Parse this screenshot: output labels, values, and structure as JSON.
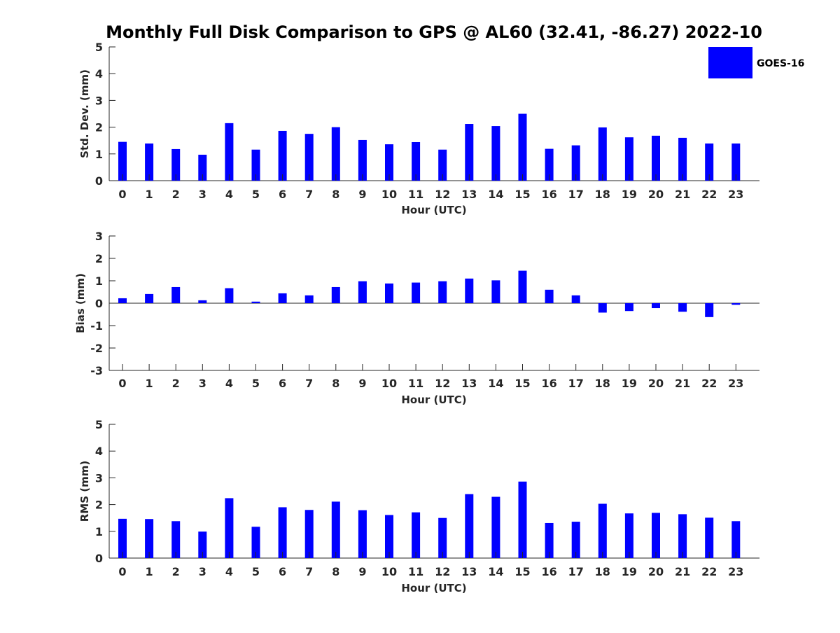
{
  "title": "Monthly Full Disk Comparison to GPS @ AL60 (32.41, -86.27) 2022-10",
  "legend": {
    "label": "GOES-16",
    "color": "#0000ff",
    "placement": "top-right"
  },
  "chart_data": [
    {
      "type": "bar",
      "xlabel": "Hour (UTC)",
      "ylabel": "Std. Dev. (mm)",
      "ylim": [
        0,
        5
      ],
      "yticks": [
        "0",
        "1",
        "2",
        "3",
        "4",
        "5"
      ],
      "categories": [
        "0",
        "1",
        "2",
        "3",
        "4",
        "5",
        "6",
        "7",
        "8",
        "9",
        "10",
        "11",
        "12",
        "13",
        "14",
        "15",
        "16",
        "17",
        "18",
        "19",
        "20",
        "21",
        "22",
        "23"
      ],
      "series": [
        {
          "name": "GOES-16",
          "color": "#0000ff",
          "values": [
            1.45,
            1.39,
            1.18,
            0.97,
            2.15,
            1.16,
            1.86,
            1.75,
            2.0,
            1.52,
            1.36,
            1.44,
            1.16,
            2.12,
            2.04,
            2.5,
            1.19,
            1.32,
            1.99,
            1.62,
            1.68,
            1.6,
            1.39,
            1.39
          ]
        }
      ]
    },
    {
      "type": "bar",
      "xlabel": "Hour (UTC)",
      "ylabel": "Bias (mm)",
      "ylim": [
        -3,
        3
      ],
      "yticks": [
        "-3",
        "-2",
        "-1",
        "0",
        "1",
        "2",
        "3"
      ],
      "categories": [
        "0",
        "1",
        "2",
        "3",
        "4",
        "5",
        "6",
        "7",
        "8",
        "9",
        "10",
        "11",
        "12",
        "13",
        "14",
        "15",
        "16",
        "17",
        "18",
        "19",
        "20",
        "21",
        "22",
        "23"
      ],
      "series": [
        {
          "name": "GOES-16",
          "color": "#0000ff",
          "values": [
            0.22,
            0.41,
            0.72,
            0.13,
            0.67,
            0.07,
            0.44,
            0.35,
            0.72,
            0.98,
            0.88,
            0.92,
            0.98,
            1.1,
            1.02,
            1.45,
            0.6,
            0.35,
            -0.42,
            -0.35,
            -0.22,
            -0.38,
            -0.62,
            -0.07
          ]
        }
      ]
    },
    {
      "type": "bar",
      "xlabel": "Hour (UTC)",
      "ylabel": "RMS (mm)",
      "ylim": [
        0,
        5
      ],
      "yticks": [
        "0",
        "1",
        "2",
        "3",
        "4",
        "5"
      ],
      "categories": [
        "0",
        "1",
        "2",
        "3",
        "4",
        "5",
        "6",
        "7",
        "8",
        "9",
        "10",
        "11",
        "12",
        "13",
        "14",
        "15",
        "16",
        "17",
        "18",
        "19",
        "20",
        "21",
        "22",
        "23"
      ],
      "series": [
        {
          "name": "GOES-16",
          "color": "#0000ff",
          "values": [
            1.47,
            1.46,
            1.38,
            0.99,
            2.24,
            1.17,
            1.9,
            1.8,
            2.11,
            1.79,
            1.61,
            1.71,
            1.5,
            2.39,
            2.29,
            2.86,
            1.31,
            1.36,
            2.03,
            1.67,
            1.69,
            1.64,
            1.51,
            1.38
          ]
        }
      ]
    }
  ]
}
